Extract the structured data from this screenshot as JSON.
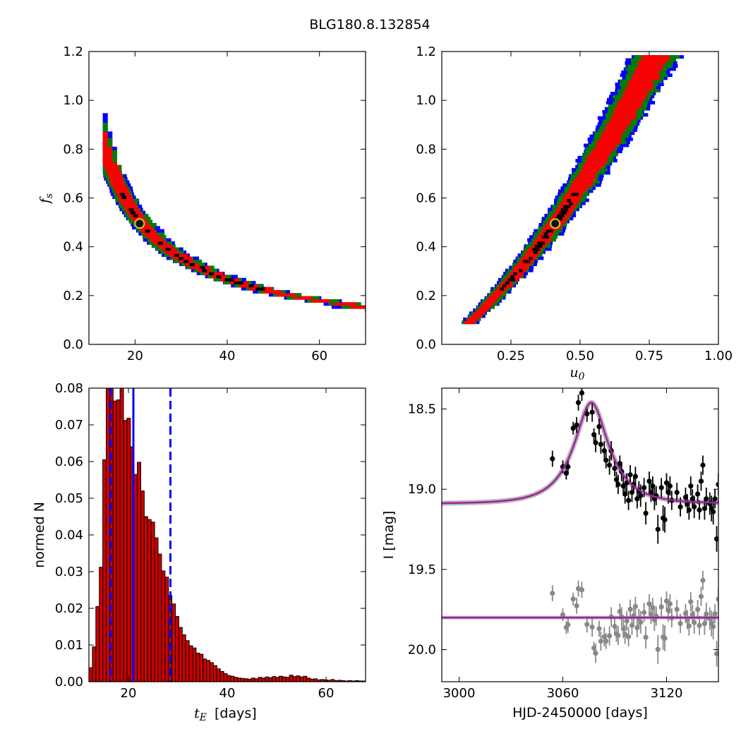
{
  "figure": {
    "title": "BLG180.8.132854"
  },
  "chart_data": [
    {
      "type": "heatmap",
      "panel": "top-left",
      "xlabel": "",
      "ylabel": "f_s",
      "xlim": [
        10,
        70
      ],
      "ylim": [
        0.0,
        1.2
      ],
      "x_ticks": [
        "20",
        "40",
        "60"
      ],
      "x_tick_values": [
        20,
        40,
        60
      ],
      "y_ticks": [
        "0.0",
        "0.2",
        "0.4",
        "0.6",
        "0.8",
        "1.0",
        "1.2"
      ],
      "y_tick_values": [
        0.0,
        0.2,
        0.4,
        0.6,
        0.8,
        1.0,
        1.2
      ],
      "relation": "f_s = 10.4 / t_E",
      "confidence_colors": {
        "1sigma_core": "#000000",
        "1sigma": "#ff0000",
        "2sigma": "#008000",
        "3sigma": "#0000ff"
      },
      "best_fit": {
        "x": 21.0,
        "y": 0.495
      }
    },
    {
      "type": "heatmap",
      "panel": "top-right",
      "xlabel": "u_0",
      "ylabel": "",
      "xlim": [
        0.0,
        1.0
      ],
      "ylim": [
        0.0,
        1.2
      ],
      "x_ticks": [
        "0.25",
        "0.50",
        "0.75",
        "1.00"
      ],
      "x_tick_values": [
        0.25,
        0.5,
        0.75,
        1.0
      ],
      "y_ticks": [
        "0.0",
        "0.2",
        "0.4",
        "0.6",
        "0.8",
        "1.0",
        "1.2"
      ],
      "y_tick_values": [
        0.0,
        0.2,
        0.4,
        0.6,
        0.8,
        1.0,
        1.2
      ],
      "relation": "f_s = 0.85*u_0^2 + 0.89*u_0 - 0.0087",
      "best_fit": {
        "x": 0.41,
        "y": 0.495
      }
    },
    {
      "type": "bar",
      "panel": "bottom-left",
      "xlabel": "[days]",
      "xlabel_math": "t_E",
      "ylabel": "normed N",
      "xlim": [
        12,
        68
      ],
      "ylim": [
        0.0,
        0.08
      ],
      "x_ticks": [
        "20",
        "40",
        "60"
      ],
      "x_tick_values": [
        20,
        40,
        60
      ],
      "y_ticks": [
        "0.00",
        "0.01",
        "0.02",
        "0.03",
        "0.04",
        "0.05",
        "0.06",
        "0.07",
        "0.08"
      ],
      "y_tick_values": [
        0.0,
        0.01,
        0.02,
        0.03,
        0.04,
        0.05,
        0.06,
        0.07,
        0.08
      ],
      "bin_start": 12,
      "bin_width": 0.7,
      "values": [
        0.0038,
        0.0095,
        0.0205,
        0.0312,
        0.0605,
        0.085,
        0.0805,
        0.0765,
        0.0768,
        0.0812,
        0.0712,
        0.0718,
        0.064,
        0.0565,
        0.0598,
        0.052,
        0.045,
        0.0442,
        0.0435,
        0.0392,
        0.0348,
        0.0302,
        0.0285,
        0.0235,
        0.0212,
        0.0178,
        0.0148,
        0.0128,
        0.0112,
        0.0098,
        0.0092,
        0.0078,
        0.0075,
        0.0062,
        0.0058,
        0.0052,
        0.0044,
        0.0035,
        0.0028,
        0.0022,
        0.0017,
        0.0015,
        0.0012,
        0.001,
        0.0009,
        0.0008,
        0.0007,
        0.001,
        0.0008,
        0.0012,
        0.001,
        0.0013,
        0.0011,
        0.0014,
        0.0012,
        0.0015,
        0.0013,
        0.0012,
        0.0018,
        0.0014,
        0.0016,
        0.0013,
        0.0015,
        0.001,
        0.0007,
        0.0008,
        0.0005,
        0.0006,
        0.0005,
        0.0004,
        0.0006,
        0.0003,
        0.0004,
        0.0003,
        0.0002,
        0.0003,
        0.0002,
        0.0003,
        0.0002,
        0.0002
      ],
      "bar_color": "#cc0000",
      "median_line": 21.0,
      "confidence_lines": [
        16.4,
        28.5
      ],
      "line_color": "#0000ff"
    },
    {
      "type": "scatter",
      "panel": "bottom-right",
      "xlabel": "HJD-2450000 [days]",
      "ylabel": "I [mag]",
      "xlim": [
        2990,
        3150
      ],
      "ylim": [
        20.2,
        18.37
      ],
      "x_ticks": [
        "3000",
        "3060",
        "3120"
      ],
      "x_tick_values": [
        3000,
        3060,
        3120
      ],
      "y_ticks": [
        "18.5",
        "19.0",
        "19.5",
        "20.0"
      ],
      "y_tick_values": [
        18.5,
        19.0,
        19.5,
        20.0
      ],
      "model": {
        "t0": 3076.5,
        "u0": 0.41,
        "tE": 21.0,
        "fs": 0.495,
        "baseline": 19.09,
        "color": "#a020a0"
      },
      "residual_offset": 19.8,
      "series": [
        {
          "color": "#000000",
          "points": [
            [
              3054,
              18.81,
              0.05
            ],
            [
              3060,
              18.86,
              0.04
            ],
            [
              3062,
              18.9,
              0.04
            ],
            [
              3063,
              18.86,
              0.05
            ],
            [
              3066,
              18.62,
              0.04
            ],
            [
              3068,
              18.6,
              0.05
            ],
            [
              3069,
              18.46,
              0.05
            ],
            [
              3071,
              18.4,
              0.05
            ],
            [
              3074,
              18.53,
              0.05
            ],
            [
              3077,
              18.52,
              0.06
            ],
            [
              3078,
              18.66,
              0.04
            ],
            [
              3079,
              18.71,
              0.06
            ],
            [
              3081,
              18.61,
              0.05
            ],
            [
              3082,
              18.72,
              0.06
            ],
            [
              3084,
              18.76,
              0.06
            ],
            [
              3085,
              18.82,
              0.05
            ],
            [
              3087,
              18.85,
              0.06
            ],
            [
              3088,
              18.76,
              0.06
            ],
            [
              3090,
              18.87,
              0.05
            ],
            [
              3091,
              18.94,
              0.05
            ],
            [
              3092,
              18.97,
              0.06
            ],
            [
              3093,
              18.84,
              0.05
            ],
            [
              3094,
              18.89,
              0.06
            ],
            [
              3095,
              18.98,
              0.06
            ],
            [
              3096,
              19.03,
              0.06
            ],
            [
              3097,
              18.96,
              0.06
            ],
            [
              3098,
              19.07,
              0.06
            ],
            [
              3099,
              18.91,
              0.06
            ],
            [
              3100,
              19.02,
              0.06
            ],
            [
              3101,
              18.97,
              0.05
            ],
            [
              3102,
              18.92,
              0.06
            ],
            [
              3103,
              19.06,
              0.06
            ],
            [
              3104,
              19.01,
              0.06
            ],
            [
              3105,
              19.04,
              0.07
            ],
            [
              3107,
              18.99,
              0.06
            ],
            [
              3108,
              19.15,
              0.07
            ],
            [
              3110,
              18.95,
              0.06
            ],
            [
              3111,
              19.02,
              0.06
            ],
            [
              3112,
              18.98,
              0.06
            ],
            [
              3113,
              19.06,
              0.07
            ],
            [
              3114,
              19.04,
              0.06
            ],
            [
              3115,
              19.25,
              0.09
            ],
            [
              3117,
              18.99,
              0.06
            ],
            [
              3118,
              19.18,
              0.08
            ],
            [
              3119,
              19.19,
              0.08
            ],
            [
              3120,
              18.96,
              0.06
            ],
            [
              3121,
              19.02,
              0.07
            ],
            [
              3122,
              18.98,
              0.06
            ],
            [
              3123,
              19.07,
              0.06
            ],
            [
              3126,
              19.02,
              0.06
            ],
            [
              3128,
              19.11,
              0.06
            ],
            [
              3131,
              19.05,
              0.06
            ],
            [
              3132,
              19.09,
              0.06
            ],
            [
              3133,
              19.13,
              0.06
            ],
            [
              3134,
              18.98,
              0.06
            ],
            [
              3135,
              19.06,
              0.06
            ],
            [
              3136,
              19.11,
              0.07
            ],
            [
              3138,
              19.03,
              0.06
            ],
            [
              3139,
              19.13,
              0.06
            ],
            [
              3140,
              18.95,
              0.06
            ],
            [
              3141,
              18.85,
              0.06
            ],
            [
              3142,
              19.12,
              0.07
            ],
            [
              3143,
              19.06,
              0.07
            ],
            [
              3145,
              19.09,
              0.07
            ],
            [
              3146,
              19.12,
              0.08
            ],
            [
              3147,
              19.14,
              0.08
            ],
            [
              3148,
              19.06,
              0.06
            ],
            [
              3149,
              19.31,
              0.08
            ],
            [
              3150,
              18.97,
              0.07
            ],
            [
              3151,
              19.08,
              0.08
            ],
            [
              3152,
              19.24,
              0.08
            ],
            [
              3153,
              19.22,
              0.08
            ],
            [
              3154,
              19.09,
              0.07
            ],
            [
              3155,
              19.11,
              0.07
            ],
            [
              3156,
              19.19,
              0.08
            ],
            [
              3158,
              18.97,
              0.06
            ]
          ]
        },
        {
          "color": "#888888",
          "points": []
        }
      ]
    }
  ]
}
